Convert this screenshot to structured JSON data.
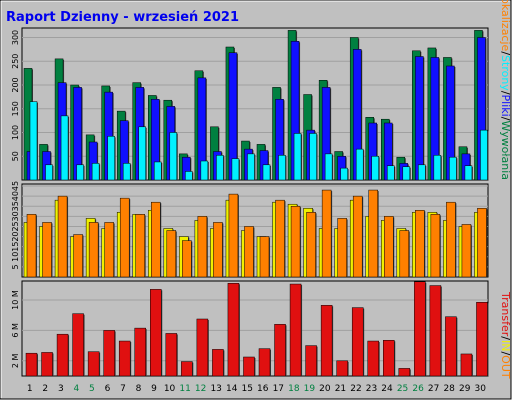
{
  "title": "Raport Dzienny -  wrzesień 2021",
  "colors": {
    "background": "#c0c0c0",
    "plot_bg": "#c0c0c0",
    "title": "#0000ee",
    "grid": "#a0a0a0",
    "visits": "#008040",
    "pages": "#1010ff",
    "files": "#00f0ff",
    "hosts": "#ff8000",
    "kbytes": "#e01010",
    "weekend_day": "#008040",
    "weekday": "#000000"
  },
  "right_legend_top": [
    {
      "text": "Wywołania",
      "color": "#008040"
    },
    {
      "text": "/",
      "color": "#000000"
    },
    {
      "text": "Pliki",
      "color": "#1010ff"
    },
    {
      "text": "/",
      "color": "#000000"
    },
    {
      "text": "Strony",
      "color": "#00f0ff"
    },
    {
      "text": "/",
      "color": "#000000"
    },
    {
      "text": "Lokalizacje",
      "color": "#ff8000"
    },
    {
      "text": "/",
      "color": "#000000"
    },
    {
      "text": "Wizyty",
      "color": "#f0f000"
    }
  ],
  "right_legend_bottom": [
    {
      "text": "OUT",
      "color": "#ff8000"
    },
    {
      "text": "/",
      "color": "#000000"
    },
    {
      "text": "IN",
      "color": "#f0f000"
    },
    {
      "text": "/",
      "color": "#000000"
    },
    {
      "text": "Transfer",
      "color": "#e01010"
    }
  ],
  "chart_data": [
    {
      "type": "bar",
      "name": "hits-files-pages",
      "categories": [
        "1",
        "2",
        "3",
        "4",
        "5",
        "6",
        "7",
        "8",
        "9",
        "10",
        "11",
        "12",
        "13",
        "14",
        "15",
        "16",
        "17",
        "18",
        "19",
        "20",
        "21",
        "22",
        "23",
        "24",
        "25",
        "26",
        "27",
        "28",
        "29",
        "30"
      ],
      "weekend_days": [
        "4",
        "5",
        "11",
        "12",
        "18",
        "19",
        "25",
        "26"
      ],
      "y_ticks": [
        "50",
        "100",
        "150",
        "200",
        "250",
        "300"
      ],
      "ylim": [
        0,
        320
      ],
      "series": [
        {
          "name": "Wywołania",
          "values": [
            235,
            75,
            255,
            200,
            95,
            198,
            145,
            205,
            178,
            168,
            55,
            230,
            112,
            280,
            82,
            75,
            195,
            315,
            180,
            210,
            60,
            300,
            132,
            128,
            48,
            272,
            278,
            258,
            70,
            315
          ]
        },
        {
          "name": "Pliki",
          "values": [
            60,
            60,
            205,
            195,
            80,
            185,
            125,
            195,
            170,
            155,
            48,
            215,
            60,
            268,
            65,
            62,
            170,
            292,
            105,
            195,
            50,
            275,
            120,
            120,
            35,
            260,
            258,
            240,
            55,
            300
          ]
        },
        {
          "name": "Strony",
          "values": [
            165,
            32,
            135,
            32,
            35,
            92,
            35,
            112,
            38,
            100,
            18,
            40,
            52,
            45,
            55,
            32,
            52,
            98,
            98,
            55,
            25,
            65,
            50,
            30,
            28,
            32,
            52,
            48,
            30,
            105
          ]
        }
      ]
    },
    {
      "type": "bar",
      "name": "visits-sites",
      "categories": [
        "1",
        "2",
        "3",
        "4",
        "5",
        "6",
        "7",
        "8",
        "9",
        "10",
        "11",
        "12",
        "13",
        "14",
        "15",
        "16",
        "17",
        "18",
        "19",
        "20",
        "21",
        "22",
        "23",
        "24",
        "25",
        "26",
        "27",
        "28",
        "29",
        "30"
      ],
      "y_ticks": [
        "5",
        "10",
        "15",
        "20",
        "25",
        "30",
        "35",
        "40",
        "45"
      ],
      "ylim": [
        0,
        46
      ],
      "series": [
        {
          "name": "Wizyty",
          "values": [
            27,
            25,
            38,
            20,
            29,
            24,
            32,
            31,
            33,
            24,
            20,
            28,
            24,
            38,
            23,
            20,
            37,
            36,
            34,
            24,
            24,
            38,
            30,
            28,
            24,
            32,
            32,
            28,
            25,
            32
          ]
        },
        {
          "name": "Lokalizacje",
          "values": [
            31,
            27,
            40,
            21,
            27,
            27,
            39,
            31,
            37,
            23,
            18,
            30,
            27,
            41,
            25,
            20,
            38,
            35,
            32,
            43,
            29,
            40,
            43,
            30,
            23,
            33,
            31,
            37,
            26,
            34
          ]
        }
      ]
    },
    {
      "type": "bar",
      "name": "transfer",
      "categories": [
        "1",
        "2",
        "3",
        "4",
        "5",
        "6",
        "7",
        "8",
        "9",
        "10",
        "11",
        "12",
        "13",
        "14",
        "15",
        "16",
        "17",
        "18",
        "19",
        "20",
        "21",
        "22",
        "23",
        "24",
        "25",
        "26",
        "27",
        "28",
        "29",
        "30"
      ],
      "y_ticks": [
        "2 M",
        "6 M",
        "10 M"
      ],
      "ylim": [
        0,
        12.5
      ],
      "series": [
        {
          "name": "Transfer",
          "values": [
            3.0,
            3.1,
            5.5,
            8.2,
            3.2,
            6.0,
            4.6,
            6.3,
            11.4,
            5.6,
            1.9,
            7.5,
            3.5,
            12.2,
            2.5,
            3.6,
            6.8,
            12.1,
            4.0,
            9.3,
            2.0,
            9.0,
            4.6,
            4.7,
            1.0,
            12.4,
            11.9,
            7.8,
            2.9,
            9.7
          ]
        }
      ]
    }
  ]
}
